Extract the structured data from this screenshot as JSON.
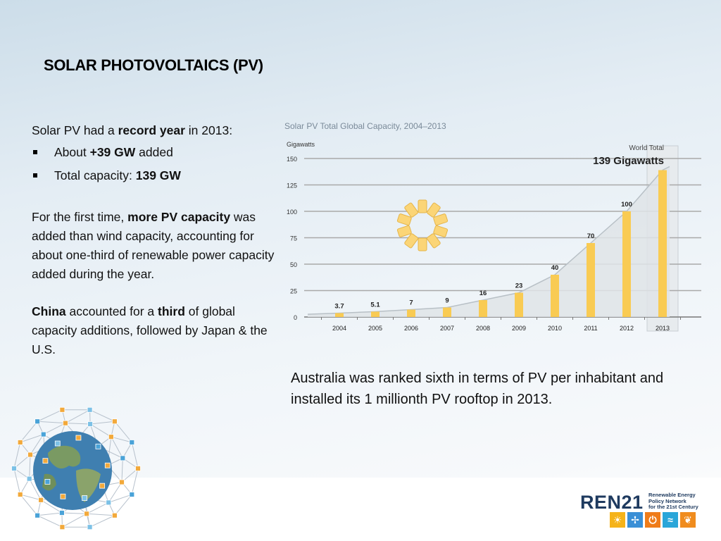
{
  "slide": {
    "title": "SOLAR PHOTOVOLTAICS (PV)",
    "intro": {
      "pre": "Solar PV had a ",
      "bold": "record year",
      "post": " in 2013:"
    },
    "bullets": [
      {
        "pre": "About ",
        "bold": "+39 GW",
        "post": " added"
      },
      {
        "pre": "Total capacity: ",
        "bold": "139 GW",
        "post": ""
      }
    ],
    "para2": {
      "pre": "For the first time, ",
      "bold": "more PV capacity",
      "post": " was added than wind capacity, accounting for about one-third of renewable power capacity added during the year."
    },
    "para3": {
      "bold1": "China",
      "mid": " accounted for a ",
      "bold2": "third",
      "post": " of global capacity additions, followed by Japan & the U.S."
    },
    "note": "Australia was ranked sixth in terms of PV per inhabitant and installed its 1 millionth PV rooftop in 2013."
  },
  "chart_data": {
    "type": "bar",
    "title": "Solar PV Total Global Capacity, 2004–2013",
    "ylabel": "Gigawatts",
    "ylim": [
      0,
      150
    ],
    "yticks": [
      0,
      25,
      50,
      75,
      100,
      125,
      150
    ],
    "categories": [
      "2004",
      "2005",
      "2006",
      "2007",
      "2008",
      "2009",
      "2010",
      "2011",
      "2012",
      "2013"
    ],
    "values": [
      3.7,
      5.1,
      7,
      9,
      16,
      23,
      40,
      70,
      100,
      139
    ],
    "value_labels": [
      "3.7",
      "5.1",
      "7",
      "9",
      "16",
      "23",
      "40",
      "70",
      "100",
      ""
    ],
    "highlight": {
      "label": "World Total",
      "value_text": "139 Gigawatts",
      "category": "2013"
    },
    "grid": true,
    "bar_color": "#f9cb53"
  },
  "logo": {
    "name_a": "REN",
    "name_b": "21",
    "sub_lines": [
      "Renewable Energy",
      "Policy Network",
      "for the 21st Century"
    ],
    "icon_colors": [
      "#f5b31a",
      "#3a8fd6",
      "#ef7c1a",
      "#2aa6d9",
      "#f08c1e"
    ]
  }
}
